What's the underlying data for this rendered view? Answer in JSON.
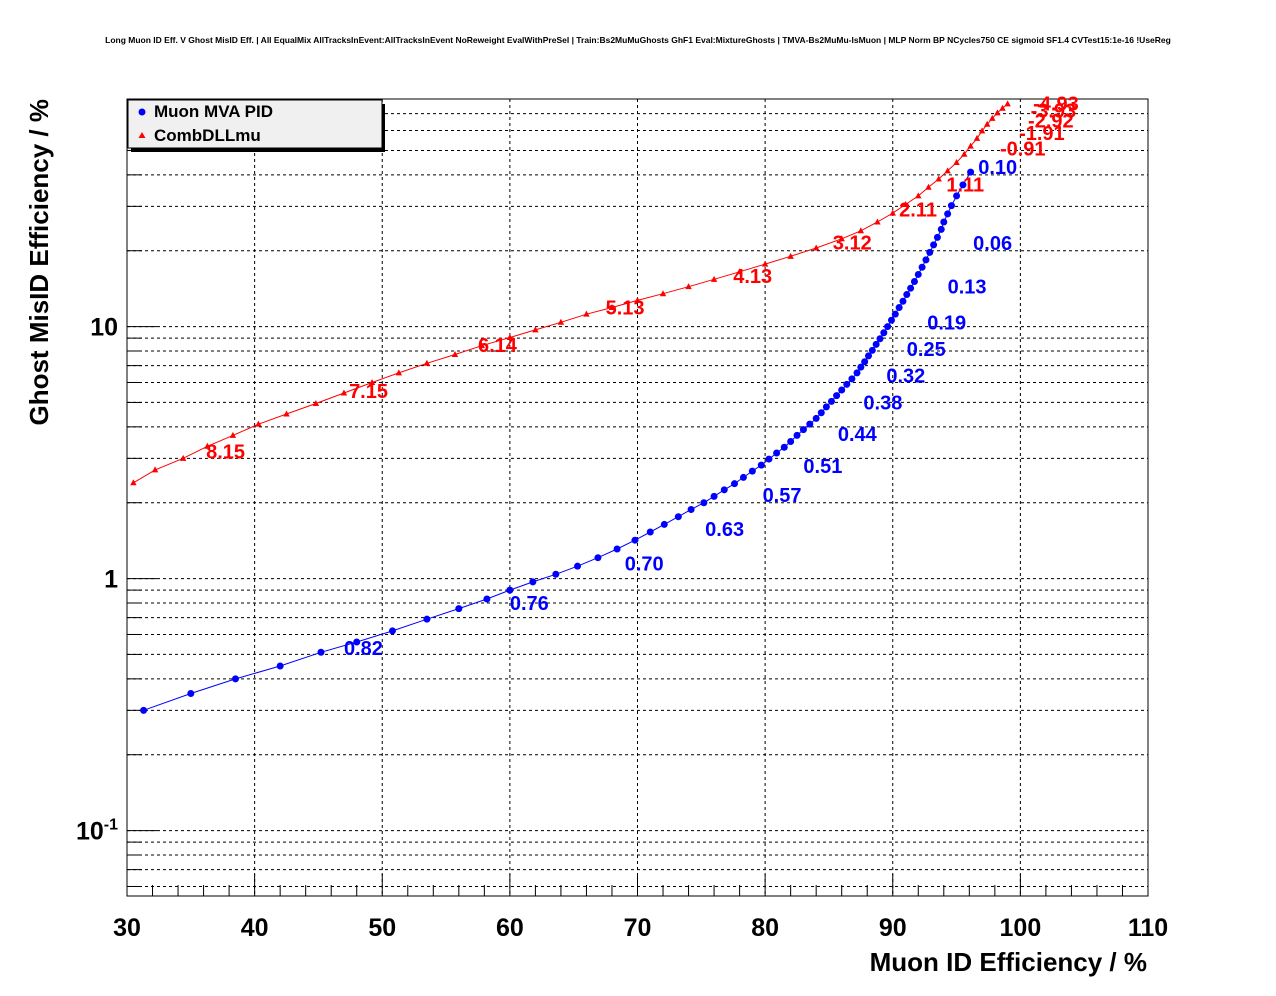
{
  "chart_data": {
    "type": "scatter",
    "title": "Long Muon ID Eff. V Ghost MisID Eff. | All EqualMix AllTracksInEvent:AllTracksInEvent NoReweight EvalWithPreSel | Train:Bs2MuMuGhosts GhF1 Eval:MixtureGhosts | TMVA-Bs2MuMu-IsMuon | MLP Norm BP NCycles750 CE sigmoid SF1.4 CVTest15:1e-16 !UseReg",
    "xlabel": "Muon ID Efficiency / %",
    "ylabel": "Ghost MisID Efficiency / %",
    "xlim": [
      30,
      110
    ],
    "ylim": [
      0.055,
      80
    ],
    "y_scale": "log",
    "grid": true,
    "legend_position": "top-left",
    "x_ticks": [
      "30",
      "40",
      "50",
      "60",
      "70",
      "80",
      "90",
      "100",
      "110"
    ],
    "y_ticks": [
      {
        "value": 0.1,
        "base": "10",
        "exp": "-1"
      },
      {
        "value": 1,
        "base": "1",
        "exp": ""
      },
      {
        "value": 10,
        "base": "10",
        "exp": ""
      }
    ],
    "series": [
      {
        "name": "Muon MVA PID",
        "color": "#0000ff",
        "marker": "circle",
        "x": [
          31.3,
          35.0,
          38.5,
          42.0,
          45.2,
          48.0,
          50.8,
          53.5,
          56.0,
          58.2,
          60.0,
          61.8,
          63.6,
          65.3,
          66.9,
          68.4,
          69.8,
          71.0,
          72.1,
          73.2,
          74.2,
          75.2,
          76.0,
          76.8,
          77.6,
          78.3,
          79.0,
          79.7,
          80.3,
          80.9,
          81.5,
          82.0,
          82.5,
          83.0,
          83.5,
          84.0,
          84.4,
          84.8,
          85.2,
          85.6,
          86.0,
          86.4,
          86.8,
          87.2,
          87.5,
          87.8,
          88.1,
          88.4,
          88.7,
          89.0,
          89.3,
          89.6,
          89.9,
          90.2,
          90.5,
          90.8,
          91.1,
          91.4,
          91.7,
          92.0,
          92.3,
          92.6,
          92.9,
          93.2,
          93.5,
          93.8,
          94.0,
          94.3,
          94.6,
          95.0,
          95.5,
          96.1
        ],
        "y": [
          0.3,
          0.35,
          0.4,
          0.45,
          0.51,
          0.56,
          0.62,
          0.69,
          0.76,
          0.83,
          0.9,
          0.97,
          1.04,
          1.12,
          1.21,
          1.31,
          1.42,
          1.53,
          1.64,
          1.76,
          1.88,
          2.0,
          2.12,
          2.25,
          2.38,
          2.52,
          2.67,
          2.82,
          2.98,
          3.15,
          3.32,
          3.5,
          3.7,
          3.9,
          4.1,
          4.32,
          4.55,
          4.8,
          5.05,
          5.32,
          5.6,
          5.9,
          6.2,
          6.55,
          6.9,
          7.25,
          7.65,
          8.05,
          8.5,
          8.95,
          9.45,
          10.0,
          10.6,
          11.2,
          11.9,
          12.6,
          13.4,
          14.2,
          15.1,
          16.1,
          17.2,
          18.4,
          19.7,
          21.1,
          22.6,
          24.3,
          26.0,
          28.0,
          30.2,
          33.0,
          36.5,
          41.0
        ],
        "labels": [
          {
            "text": "0.82",
            "x": 47.0,
            "y": 0.53
          },
          {
            "text": "0.76",
            "x": 60.0,
            "y": 0.8
          },
          {
            "text": "0.70",
            "x": 69.0,
            "y": 1.15
          },
          {
            "text": "0.63",
            "x": 75.3,
            "y": 1.57
          },
          {
            "text": "0.57",
            "x": 79.8,
            "y": 2.15
          },
          {
            "text": "0.51",
            "x": 83.0,
            "y": 2.8
          },
          {
            "text": "0.44",
            "x": 85.7,
            "y": 3.75
          },
          {
            "text": "0.38",
            "x": 87.7,
            "y": 5.0
          },
          {
            "text": "0.32",
            "x": 89.5,
            "y": 6.4
          },
          {
            "text": "0.25",
            "x": 91.1,
            "y": 8.15
          },
          {
            "text": "0.19",
            "x": 92.7,
            "y": 10.4
          },
          {
            "text": "0.13",
            "x": 94.3,
            "y": 14.4
          },
          {
            "text": "0.06",
            "x": 96.3,
            "y": 21.5
          },
          {
            "text": "0.10",
            "x": 96.7,
            "y": 43.0
          }
        ]
      },
      {
        "name": "CombDLLmu",
        "color": "#ff0000",
        "marker": "triangle",
        "x": [
          30.5,
          32.2,
          34.4,
          36.3,
          38.3,
          40.3,
          42.5,
          44.8,
          47.0,
          49.2,
          51.3,
          53.5,
          55.7,
          57.8,
          60.0,
          62.0,
          64.0,
          66.0,
          68.0,
          70.0,
          72.0,
          74.0,
          76.0,
          78.0,
          80.0,
          82.0,
          84.0,
          86.0,
          87.5,
          88.8,
          90.0,
          91.0,
          92.0,
          92.8,
          93.6,
          94.3,
          95.0,
          95.6,
          96.1,
          96.6,
          97.0,
          97.4,
          97.8,
          98.2,
          98.6,
          99.0
        ],
        "y": [
          2.4,
          2.7,
          3.0,
          3.35,
          3.7,
          4.1,
          4.5,
          4.95,
          5.45,
          6.0,
          6.55,
          7.15,
          7.75,
          8.4,
          9.05,
          9.7,
          10.4,
          11.2,
          11.9,
          12.7,
          13.5,
          14.4,
          15.4,
          16.5,
          17.7,
          19.0,
          20.5,
          22.3,
          24.0,
          26.0,
          28.2,
          30.5,
          33.0,
          35.7,
          38.5,
          41.5,
          44.8,
          48.3,
          52.0,
          55.8,
          59.8,
          63.5,
          67.0,
          70.5,
          73.5,
          76.5
        ],
        "labels": [
          {
            "text": "8.15",
            "x": 36.2,
            "y": 3.2
          },
          {
            "text": "7.15",
            "x": 47.4,
            "y": 5.55
          },
          {
            "text": "6.14",
            "x": 57.5,
            "y": 8.45
          },
          {
            "text": "5.13",
            "x": 67.5,
            "y": 11.9
          },
          {
            "text": "4.13",
            "x": 77.5,
            "y": 15.9
          },
          {
            "text": "3.12",
            "x": 85.3,
            "y": 21.6
          },
          {
            "text": "2.11",
            "x": 90.5,
            "y": 29.2
          },
          {
            "text": "1.11",
            "x": 94.2,
            "y": 36.6
          },
          {
            "text": "-0.91",
            "x": 98.4,
            "y": 51.0
          },
          {
            "text": "-1.91",
            "x": 99.9,
            "y": 58.6
          },
          {
            "text": "-2.92",
            "x": 100.6,
            "y": 65.8
          },
          {
            "text": "-3.93",
            "x": 100.8,
            "y": 72.0
          },
          {
            "text": "-4.93",
            "x": 101.0,
            "y": 76.7
          }
        ]
      }
    ]
  }
}
